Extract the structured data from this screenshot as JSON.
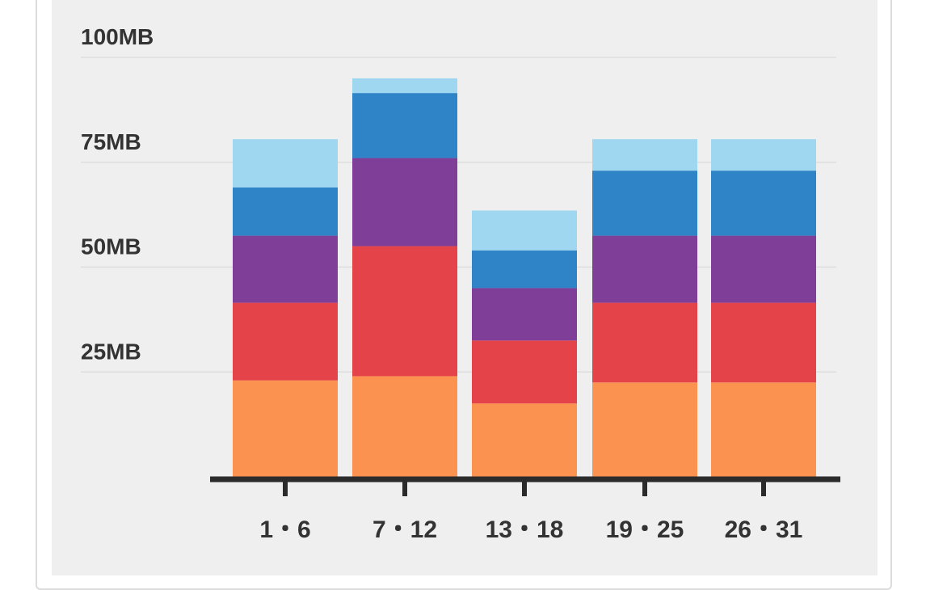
{
  "chart_data": {
    "type": "bar",
    "stacked": true,
    "categories": [
      "1・6",
      "7・12",
      "13・18",
      "19・25",
      "26・31"
    ],
    "series": [
      {
        "color": "#fc9250",
        "values": [
          23,
          24,
          17.5,
          22.5,
          22.5
        ]
      },
      {
        "color": "#e5434a",
        "values": [
          18.5,
          31,
          15,
          19,
          19
        ]
      },
      {
        "color": "#7f3f98",
        "values": [
          16,
          21,
          12.5,
          16,
          16
        ]
      },
      {
        "color": "#2e84c6",
        "values": [
          11.5,
          15.5,
          9,
          15.5,
          15.5
        ]
      },
      {
        "color": "#9fd7f0",
        "values": [
          11.5,
          3.5,
          9.5,
          7.5,
          7.5
        ]
      }
    ],
    "y_tick_labels": [
      "25MB",
      "50MB",
      "75MB",
      "100MB"
    ],
    "y_tick_values": [
      25,
      50,
      75,
      100
    ],
    "ylim": [
      0,
      100
    ],
    "grid": true,
    "legend": "none"
  }
}
